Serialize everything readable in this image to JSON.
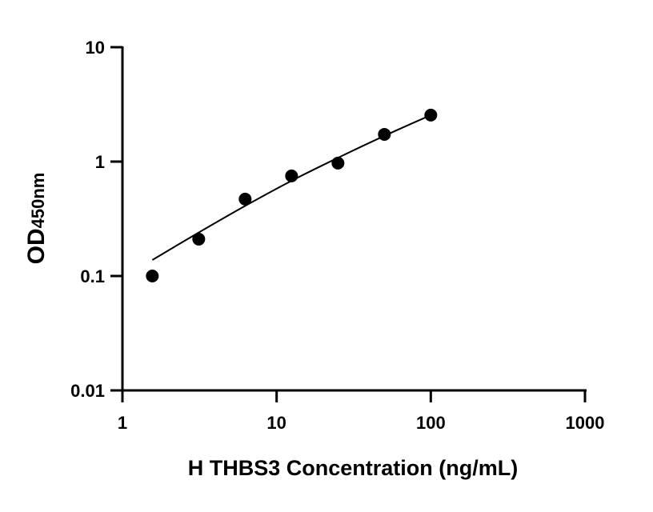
{
  "chart_data": {
    "type": "scatter",
    "title": "",
    "xlabel": "H THBS3 Concentration (ng/mL)",
    "ylabel": "OD",
    "ylabel_subscript": "450nm",
    "x_scale": "log",
    "y_scale": "log",
    "xlim": [
      1,
      1000
    ],
    "ylim": [
      0.01,
      10
    ],
    "x_ticks": [
      "1",
      "10",
      "100",
      "1000"
    ],
    "y_ticks": [
      "0.01",
      "0.1",
      "1",
      "10"
    ],
    "grid": false,
    "series": [
      {
        "x": [
          1.5625,
          3.125,
          6.25,
          12.5,
          25,
          50,
          100
        ],
        "y": [
          0.1,
          0.21,
          0.47,
          0.75,
          0.97,
          1.73,
          2.55
        ],
        "marker": "circle",
        "color": "#000000"
      }
    ],
    "fit_curve": {
      "x": [
        1.5625,
        3.125,
        6.25,
        12.5,
        25,
        50,
        100
      ],
      "y": [
        0.138,
        0.24,
        0.41,
        0.68,
        1.08,
        1.68,
        2.55
      ],
      "color": "#000000"
    }
  }
}
